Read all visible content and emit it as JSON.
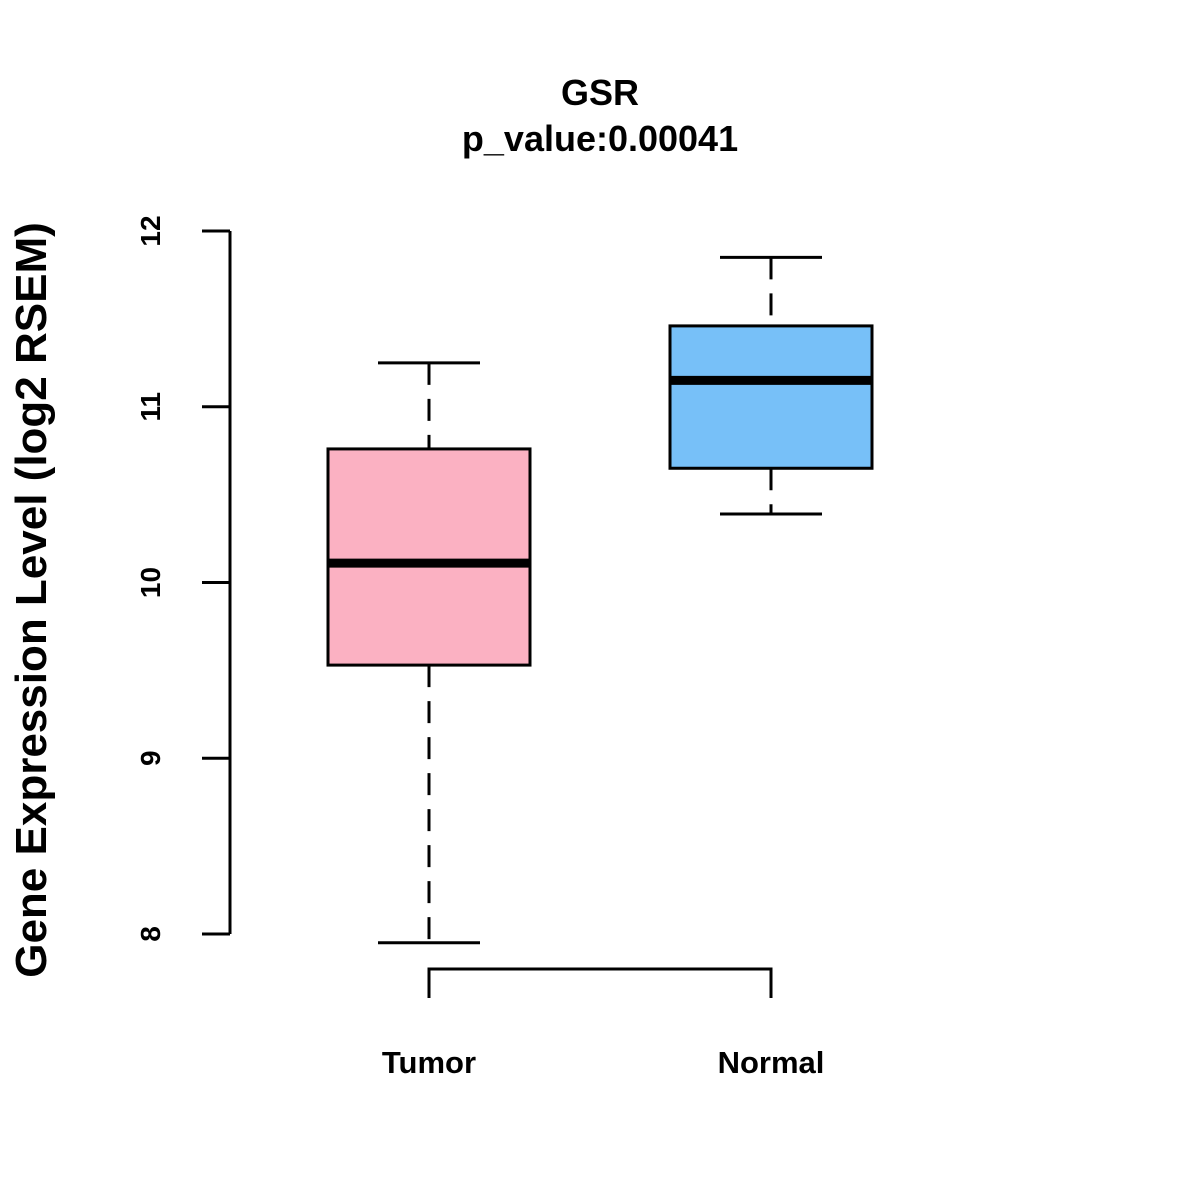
{
  "chart_data": {
    "type": "boxplot",
    "title": "GSR",
    "subtitle": "p_value:0.00041",
    "xlabel": "",
    "ylabel": "Gene Expression Level (log2 RSEM)",
    "ylim": [
      8,
      12
    ],
    "yticks": [
      8,
      9,
      10,
      11,
      12
    ],
    "grid": false,
    "legend": "none",
    "categories": [
      "Tumor",
      "Normal"
    ],
    "boxes": [
      {
        "name": "Tumor",
        "whisker_low": 7.95,
        "q1": 9.53,
        "median": 10.11,
        "q3": 10.76,
        "whisker_high": 11.25,
        "color": "#FBB1C2"
      },
      {
        "name": "Normal",
        "whisker_low": 10.39,
        "q1": 10.65,
        "median": 11.15,
        "q3": 11.46,
        "whisker_high": 11.85,
        "color": "#77C0F8"
      }
    ]
  }
}
